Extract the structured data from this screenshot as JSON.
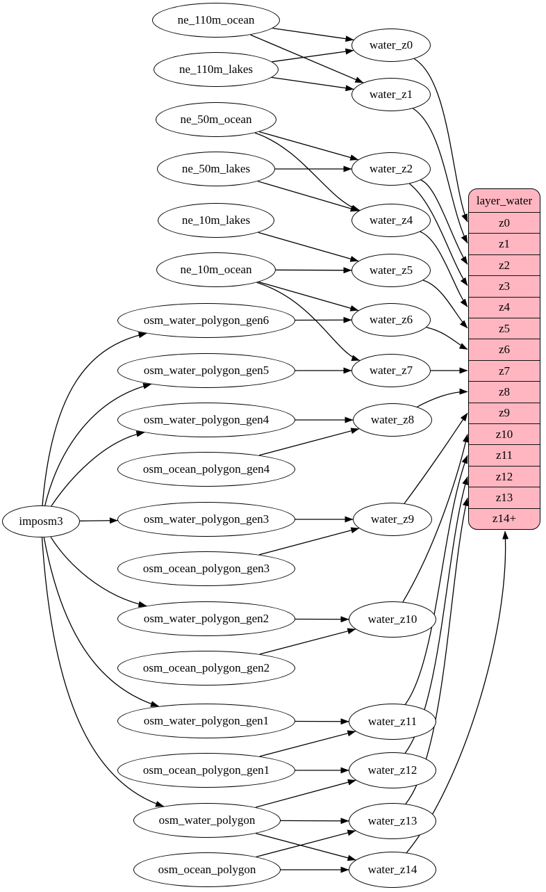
{
  "graph": {
    "nodes": [
      {
        "id": "imposm3",
        "label": "imposm3"
      },
      {
        "id": "ne_110m_ocean",
        "label": "ne_110m_ocean"
      },
      {
        "id": "ne_110m_lakes",
        "label": "ne_110m_lakes"
      },
      {
        "id": "ne_50m_ocean",
        "label": "ne_50m_ocean"
      },
      {
        "id": "ne_50m_lakes",
        "label": "ne_50m_lakes"
      },
      {
        "id": "ne_10m_lakes",
        "label": "ne_10m_lakes"
      },
      {
        "id": "ne_10m_ocean",
        "label": "ne_10m_ocean"
      },
      {
        "id": "osm_water_polygon_gen6",
        "label": "osm_water_polygon_gen6"
      },
      {
        "id": "osm_water_polygon_gen5",
        "label": "osm_water_polygon_gen5"
      },
      {
        "id": "osm_water_polygon_gen4",
        "label": "osm_water_polygon_gen4"
      },
      {
        "id": "osm_ocean_polygon_gen4",
        "label": "osm_ocean_polygon_gen4"
      },
      {
        "id": "osm_water_polygon_gen3",
        "label": "osm_water_polygon_gen3"
      },
      {
        "id": "osm_ocean_polygon_gen3",
        "label": "osm_ocean_polygon_gen3"
      },
      {
        "id": "osm_water_polygon_gen2",
        "label": "osm_water_polygon_gen2"
      },
      {
        "id": "osm_ocean_polygon_gen2",
        "label": "osm_ocean_polygon_gen2"
      },
      {
        "id": "osm_water_polygon_gen1",
        "label": "osm_water_polygon_gen1"
      },
      {
        "id": "osm_ocean_polygon_gen1",
        "label": "osm_ocean_polygon_gen1"
      },
      {
        "id": "osm_water_polygon",
        "label": "osm_water_polygon"
      },
      {
        "id": "osm_ocean_polygon",
        "label": "osm_ocean_polygon"
      },
      {
        "id": "water_z0",
        "label": "water_z0"
      },
      {
        "id": "water_z1",
        "label": "water_z1"
      },
      {
        "id": "water_z2",
        "label": "water_z2"
      },
      {
        "id": "water_z4",
        "label": "water_z4"
      },
      {
        "id": "water_z5",
        "label": "water_z5"
      },
      {
        "id": "water_z6",
        "label": "water_z6"
      },
      {
        "id": "water_z7",
        "label": "water_z7"
      },
      {
        "id": "water_z8",
        "label": "water_z8"
      },
      {
        "id": "water_z9",
        "label": "water_z9"
      },
      {
        "id": "water_z10",
        "label": "water_z10"
      },
      {
        "id": "water_z11",
        "label": "water_z11"
      },
      {
        "id": "water_z12",
        "label": "water_z12"
      },
      {
        "id": "water_z13",
        "label": "water_z13"
      },
      {
        "id": "water_z14",
        "label": "water_z14"
      }
    ],
    "table": {
      "id": "layer_water",
      "title": "layer_water",
      "rows": [
        "z0",
        "z1",
        "z2",
        "z3",
        "z4",
        "z5",
        "z6",
        "z7",
        "z8",
        "z9",
        "z10",
        "z11",
        "z12",
        "z13",
        "z14+"
      ]
    },
    "edges": [
      [
        "imposm3",
        "osm_water_polygon_gen6"
      ],
      [
        "imposm3",
        "osm_water_polygon_gen5"
      ],
      [
        "imposm3",
        "osm_water_polygon_gen4"
      ],
      [
        "imposm3",
        "osm_water_polygon_gen3"
      ],
      [
        "imposm3",
        "osm_water_polygon_gen2"
      ],
      [
        "imposm3",
        "osm_water_polygon_gen1"
      ],
      [
        "imposm3",
        "osm_water_polygon"
      ],
      [
        "ne_110m_ocean",
        "water_z0"
      ],
      [
        "ne_110m_ocean",
        "water_z1"
      ],
      [
        "ne_110m_lakes",
        "water_z0"
      ],
      [
        "ne_110m_lakes",
        "water_z1"
      ],
      [
        "ne_50m_ocean",
        "water_z2"
      ],
      [
        "ne_50m_ocean",
        "water_z4"
      ],
      [
        "ne_50m_lakes",
        "water_z2"
      ],
      [
        "ne_50m_lakes",
        "water_z4"
      ],
      [
        "ne_10m_lakes",
        "water_z5"
      ],
      [
        "ne_10m_ocean",
        "water_z5"
      ],
      [
        "ne_10m_ocean",
        "water_z6"
      ],
      [
        "ne_10m_ocean",
        "water_z7"
      ],
      [
        "osm_water_polygon_gen6",
        "water_z6"
      ],
      [
        "osm_water_polygon_gen5",
        "water_z7"
      ],
      [
        "osm_water_polygon_gen4",
        "water_z8"
      ],
      [
        "osm_ocean_polygon_gen4",
        "water_z8"
      ],
      [
        "osm_water_polygon_gen3",
        "water_z9"
      ],
      [
        "osm_ocean_polygon_gen3",
        "water_z9"
      ],
      [
        "osm_water_polygon_gen2",
        "water_z10"
      ],
      [
        "osm_ocean_polygon_gen2",
        "water_z10"
      ],
      [
        "osm_water_polygon_gen1",
        "water_z11"
      ],
      [
        "osm_ocean_polygon_gen1",
        "water_z11"
      ],
      [
        "osm_ocean_polygon_gen1",
        "water_z12"
      ],
      [
        "osm_water_polygon",
        "water_z12"
      ],
      [
        "osm_water_polygon",
        "water_z13"
      ],
      [
        "osm_ocean_polygon",
        "water_z13"
      ],
      [
        "osm_water_polygon",
        "water_z14"
      ],
      [
        "osm_ocean_polygon",
        "water_z14"
      ],
      [
        "water_z0",
        "layer_water.z0"
      ],
      [
        "water_z1",
        "layer_water.z1"
      ],
      [
        "water_z2",
        "layer_water.z2"
      ],
      [
        "water_z2",
        "layer_water.z3"
      ],
      [
        "water_z4",
        "layer_water.z4"
      ],
      [
        "water_z5",
        "layer_water.z5"
      ],
      [
        "water_z6",
        "layer_water.z6"
      ],
      [
        "water_z7",
        "layer_water.z7"
      ],
      [
        "water_z8",
        "layer_water.z8"
      ],
      [
        "water_z9",
        "layer_water.z9"
      ],
      [
        "water_z10",
        "layer_water.z10"
      ],
      [
        "water_z11",
        "layer_water.z11"
      ],
      [
        "water_z12",
        "layer_water.z12"
      ],
      [
        "water_z13",
        "layer_water.z13"
      ],
      [
        "water_z14",
        "layer_water.z14+"
      ]
    ]
  },
  "colors": {
    "background": "#ffffff",
    "node_fill": "#ffffff",
    "node_border": "#000000",
    "edge": "#000000",
    "text": "#000000",
    "table_fill": "#ffb6c1",
    "table_border": "#000000"
  }
}
